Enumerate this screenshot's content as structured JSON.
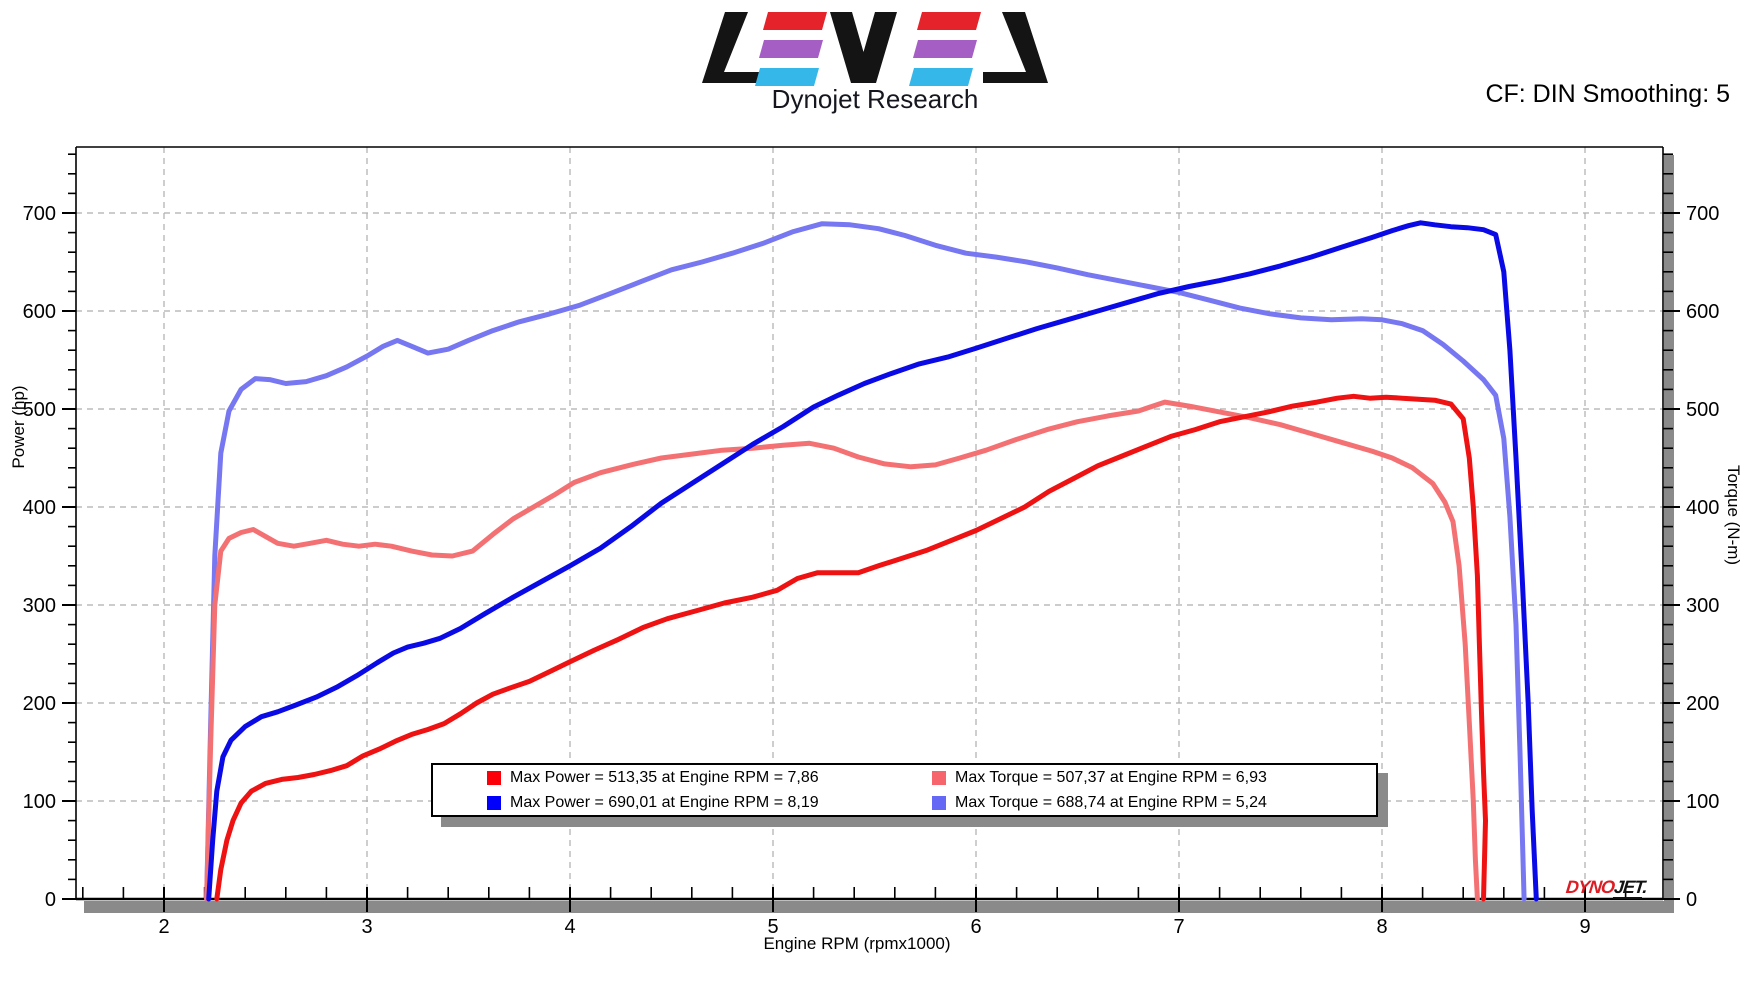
{
  "header": {
    "title": "Dynojet Research",
    "smoothing_label": "CF: DIN Smoothing: 5",
    "logo_text": "LEVEL",
    "logo_colors": {
      "black": "#141414",
      "red": "#e4232b",
      "purple": "#a55ec4",
      "cyan": "#36b7ea"
    }
  },
  "branding": {
    "dyno_red": "DYNO",
    "dyno_black": "JET",
    "dyno_dot": "."
  },
  "chart_data": {
    "type": "line",
    "title": "",
    "xlabel": "Engine RPM (rpmx1000)",
    "ylabel_left": "Power (hp)",
    "ylabel_right": "Torque (N-m)",
    "xlim": [
      1.567,
      9.385
    ],
    "ylim": [
      0,
      767
    ],
    "x_ticks": [
      2,
      3,
      4,
      5,
      6,
      7,
      8,
      9
    ],
    "y_ticks": [
      0,
      100,
      200,
      300,
      400,
      500,
      600,
      700
    ],
    "x_minor_step": 0.2,
    "y_minor_step": 20,
    "grid": "dashed",
    "grid_color": "#aeaeae",
    "shadow_color": "#8a8a8a",
    "series": [
      {
        "name": "torque-run-light-blue",
        "color": "#7677f1",
        "width": 5,
        "points": [
          [
            2.21,
            0
          ],
          [
            2.23,
            180
          ],
          [
            2.25,
            350
          ],
          [
            2.28,
            455
          ],
          [
            2.32,
            498
          ],
          [
            2.38,
            520
          ],
          [
            2.45,
            531
          ],
          [
            2.52,
            530
          ],
          [
            2.6,
            526
          ],
          [
            2.7,
            528
          ],
          [
            2.8,
            534
          ],
          [
            2.9,
            543
          ],
          [
            3.0,
            554
          ],
          [
            3.08,
            564
          ],
          [
            3.15,
            570
          ],
          [
            3.22,
            564
          ],
          [
            3.3,
            557
          ],
          [
            3.4,
            561
          ],
          [
            3.5,
            570
          ],
          [
            3.62,
            580
          ],
          [
            3.75,
            589
          ],
          [
            3.9,
            597
          ],
          [
            4.05,
            606
          ],
          [
            4.2,
            618
          ],
          [
            4.35,
            630
          ],
          [
            4.5,
            642
          ],
          [
            4.65,
            650
          ],
          [
            4.8,
            659
          ],
          [
            4.95,
            669
          ],
          [
            5.1,
            681
          ],
          [
            5.24,
            689
          ],
          [
            5.38,
            688
          ],
          [
            5.52,
            684
          ],
          [
            5.65,
            677
          ],
          [
            5.8,
            667
          ],
          [
            5.95,
            659
          ],
          [
            6.1,
            655
          ],
          [
            6.25,
            650
          ],
          [
            6.4,
            644
          ],
          [
            6.55,
            637
          ],
          [
            6.7,
            631
          ],
          [
            6.85,
            625
          ],
          [
            7.0,
            619
          ],
          [
            7.15,
            611
          ],
          [
            7.3,
            603
          ],
          [
            7.45,
            597
          ],
          [
            7.6,
            593
          ],
          [
            7.75,
            591
          ],
          [
            7.9,
            592
          ],
          [
            8.0,
            591
          ],
          [
            8.1,
            587
          ],
          [
            8.2,
            580
          ],
          [
            8.3,
            566
          ],
          [
            8.4,
            549
          ],
          [
            8.5,
            530
          ],
          [
            8.56,
            514
          ],
          [
            8.6,
            470
          ],
          [
            8.63,
            390
          ],
          [
            8.66,
            280
          ],
          [
            8.68,
            150
          ],
          [
            8.7,
            0
          ]
        ]
      },
      {
        "name": "torque-run-salmon",
        "color": "#f47173",
        "width": 5,
        "points": [
          [
            2.21,
            0
          ],
          [
            2.23,
            160
          ],
          [
            2.25,
            300
          ],
          [
            2.28,
            355
          ],
          [
            2.32,
            368
          ],
          [
            2.38,
            374
          ],
          [
            2.44,
            377
          ],
          [
            2.5,
            370
          ],
          [
            2.56,
            363
          ],
          [
            2.64,
            360
          ],
          [
            2.72,
            363
          ],
          [
            2.8,
            366
          ],
          [
            2.88,
            362
          ],
          [
            2.96,
            360
          ],
          [
            3.04,
            362
          ],
          [
            3.12,
            360
          ],
          [
            3.22,
            355
          ],
          [
            3.32,
            351
          ],
          [
            3.42,
            350
          ],
          [
            3.52,
            355
          ],
          [
            3.62,
            372
          ],
          [
            3.72,
            388
          ],
          [
            3.82,
            400
          ],
          [
            3.92,
            412
          ],
          [
            4.02,
            425
          ],
          [
            4.15,
            435
          ],
          [
            4.3,
            443
          ],
          [
            4.45,
            450
          ],
          [
            4.6,
            454
          ],
          [
            4.75,
            458
          ],
          [
            4.9,
            460
          ],
          [
            5.05,
            463
          ],
          [
            5.18,
            465
          ],
          [
            5.3,
            460
          ],
          [
            5.42,
            451
          ],
          [
            5.55,
            444
          ],
          [
            5.68,
            441
          ],
          [
            5.8,
            443
          ],
          [
            5.92,
            450
          ],
          [
            6.05,
            458
          ],
          [
            6.2,
            469
          ],
          [
            6.35,
            479
          ],
          [
            6.5,
            487
          ],
          [
            6.65,
            493
          ],
          [
            6.8,
            498
          ],
          [
            6.93,
            507
          ],
          [
            7.05,
            503
          ],
          [
            7.2,
            497
          ],
          [
            7.35,
            491
          ],
          [
            7.5,
            484
          ],
          [
            7.65,
            475
          ],
          [
            7.8,
            466
          ],
          [
            7.95,
            457
          ],
          [
            8.05,
            450
          ],
          [
            8.15,
            440
          ],
          [
            8.25,
            424
          ],
          [
            8.31,
            405
          ],
          [
            8.35,
            385
          ],
          [
            8.38,
            340
          ],
          [
            8.41,
            260
          ],
          [
            8.43,
            180
          ],
          [
            8.45,
            100
          ],
          [
            8.46,
            40
          ],
          [
            8.47,
            0
          ]
        ]
      },
      {
        "name": "power-run-red",
        "color": "#ee1212",
        "width": 5,
        "points": [
          [
            2.26,
            0
          ],
          [
            2.28,
            30
          ],
          [
            2.31,
            60
          ],
          [
            2.34,
            80
          ],
          [
            2.38,
            98
          ],
          [
            2.43,
            110
          ],
          [
            2.5,
            118
          ],
          [
            2.58,
            122
          ],
          [
            2.66,
            124
          ],
          [
            2.74,
            127
          ],
          [
            2.82,
            131
          ],
          [
            2.9,
            136
          ],
          [
            2.98,
            146
          ],
          [
            3.06,
            153
          ],
          [
            3.14,
            161
          ],
          [
            3.22,
            168
          ],
          [
            3.3,
            173
          ],
          [
            3.38,
            179
          ],
          [
            3.46,
            189
          ],
          [
            3.54,
            200
          ],
          [
            3.62,
            209
          ],
          [
            3.7,
            215
          ],
          [
            3.8,
            222
          ],
          [
            3.9,
            232
          ],
          [
            4.0,
            242
          ],
          [
            4.12,
            254
          ],
          [
            4.24,
            265
          ],
          [
            4.36,
            277
          ],
          [
            4.48,
            286
          ],
          [
            4.62,
            294
          ],
          [
            4.76,
            302
          ],
          [
            4.9,
            308
          ],
          [
            5.02,
            315
          ],
          [
            5.12,
            327
          ],
          [
            5.22,
            333
          ],
          [
            5.32,
            333
          ],
          [
            5.42,
            333
          ],
          [
            5.52,
            340
          ],
          [
            5.64,
            348
          ],
          [
            5.76,
            356
          ],
          [
            5.88,
            366
          ],
          [
            6.0,
            376
          ],
          [
            6.12,
            388
          ],
          [
            6.24,
            400
          ],
          [
            6.36,
            416
          ],
          [
            6.48,
            429
          ],
          [
            6.6,
            442
          ],
          [
            6.72,
            452
          ],
          [
            6.84,
            462
          ],
          [
            6.96,
            472
          ],
          [
            7.08,
            479
          ],
          [
            7.2,
            487
          ],
          [
            7.32,
            492
          ],
          [
            7.44,
            497
          ],
          [
            7.56,
            503
          ],
          [
            7.68,
            507
          ],
          [
            7.78,
            511
          ],
          [
            7.86,
            513
          ],
          [
            7.94,
            511
          ],
          [
            8.02,
            512
          ],
          [
            8.1,
            511
          ],
          [
            8.18,
            510
          ],
          [
            8.26,
            509
          ],
          [
            8.34,
            505
          ],
          [
            8.4,
            490
          ],
          [
            8.43,
            450
          ],
          [
            8.45,
            400
          ],
          [
            8.47,
            330
          ],
          [
            8.48,
            260
          ],
          [
            8.49,
            190
          ],
          [
            8.5,
            130
          ],
          [
            8.51,
            80
          ],
          [
            8.505,
            40
          ],
          [
            8.5,
            0
          ]
        ]
      },
      {
        "name": "power-run-blue",
        "color": "#0a0ae6",
        "width": 5,
        "points": [
          [
            2.22,
            0
          ],
          [
            2.24,
            60
          ],
          [
            2.26,
            110
          ],
          [
            2.29,
            145
          ],
          [
            2.33,
            162
          ],
          [
            2.4,
            176
          ],
          [
            2.48,
            186
          ],
          [
            2.56,
            191
          ],
          [
            2.65,
            198
          ],
          [
            2.75,
            206
          ],
          [
            2.85,
            216
          ],
          [
            2.95,
            228
          ],
          [
            3.05,
            241
          ],
          [
            3.13,
            251
          ],
          [
            3.2,
            257
          ],
          [
            3.28,
            261
          ],
          [
            3.36,
            266
          ],
          [
            3.46,
            276
          ],
          [
            3.58,
            291
          ],
          [
            3.72,
            308
          ],
          [
            3.86,
            324
          ],
          [
            4.0,
            340
          ],
          [
            4.15,
            358
          ],
          [
            4.3,
            380
          ],
          [
            4.45,
            404
          ],
          [
            4.6,
            424
          ],
          [
            4.75,
            444
          ],
          [
            4.9,
            464
          ],
          [
            5.05,
            482
          ],
          [
            5.2,
            502
          ],
          [
            5.32,
            514
          ],
          [
            5.45,
            526
          ],
          [
            5.58,
            536
          ],
          [
            5.72,
            546
          ],
          [
            5.86,
            553
          ],
          [
            6.0,
            562
          ],
          [
            6.15,
            572
          ],
          [
            6.3,
            582
          ],
          [
            6.45,
            591
          ],
          [
            6.6,
            600
          ],
          [
            6.75,
            609
          ],
          [
            6.9,
            618
          ],
          [
            7.05,
            625
          ],
          [
            7.2,
            631
          ],
          [
            7.35,
            638
          ],
          [
            7.5,
            646
          ],
          [
            7.65,
            655
          ],
          [
            7.8,
            665
          ],
          [
            7.95,
            675
          ],
          [
            8.05,
            682
          ],
          [
            8.13,
            687
          ],
          [
            8.19,
            690
          ],
          [
            8.26,
            688
          ],
          [
            8.34,
            686
          ],
          [
            8.42,
            685
          ],
          [
            8.5,
            683
          ],
          [
            8.56,
            678
          ],
          [
            8.6,
            640
          ],
          [
            8.63,
            560
          ],
          [
            8.66,
            450
          ],
          [
            8.69,
            330
          ],
          [
            8.72,
            200
          ],
          [
            8.74,
            90
          ],
          [
            8.76,
            0
          ]
        ]
      }
    ],
    "legend": {
      "items": [
        {
          "swatch": "#fb0008",
          "label": "Max Power = 513,35 at Engine RPM = 7,86"
        },
        {
          "swatch": "#f5656b",
          "label": "Max Torque = 507,37 at Engine RPM = 6,93"
        },
        {
          "swatch": "#0000fb",
          "label": "Max Power = 690,01 at Engine RPM = 8,19"
        },
        {
          "swatch": "#6567f5",
          "label": "Max Torque = 688,74 at Engine RPM = 5,24"
        }
      ],
      "position": "bottom-center"
    }
  }
}
